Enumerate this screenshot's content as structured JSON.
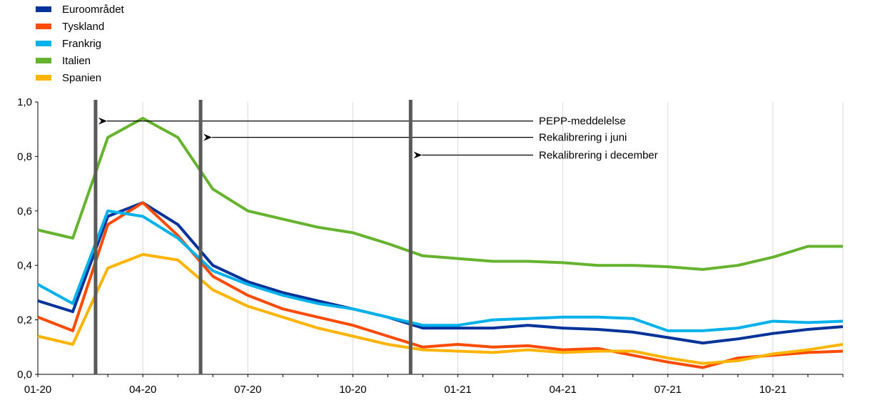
{
  "chart_data": {
    "type": "line",
    "categories": [
      "01-20",
      "02-20",
      "03-20",
      "04-20",
      "05-20",
      "06-20",
      "07-20",
      "08-20",
      "09-20",
      "10-20",
      "11-20",
      "12-20",
      "01-21",
      "02-21",
      "03-21",
      "04-21",
      "05-21",
      "06-21",
      "07-21",
      "08-21",
      "09-21",
      "10-21",
      "11-21",
      "12-21"
    ],
    "x_tick_labels": [
      "01-20",
      "04-20",
      "07-20",
      "10-20",
      "01-21",
      "04-21",
      "07-21",
      "10-21"
    ],
    "y_tick_labels": [
      "0,0",
      "0,2",
      "0,4",
      "0,6",
      "0,8",
      "1,0"
    ],
    "ylim": [
      0,
      1.0
    ],
    "grid": "vertical",
    "legend_position": "top-left",
    "series": [
      {
        "name": "Euroområdet",
        "color": "#003299",
        "values": [
          0.27,
          0.23,
          0.58,
          0.63,
          0.55,
          0.4,
          0.34,
          0.3,
          0.27,
          0.24,
          0.21,
          0.17,
          0.17,
          0.17,
          0.18,
          0.17,
          0.165,
          0.155,
          0.135,
          0.115,
          0.13,
          0.15,
          0.165,
          0.175
        ]
      },
      {
        "name": "Tyskland",
        "color": "#FF4B00",
        "values": [
          0.21,
          0.16,
          0.55,
          0.63,
          0.51,
          0.36,
          0.29,
          0.24,
          0.21,
          0.18,
          0.14,
          0.1,
          0.11,
          0.1,
          0.105,
          0.09,
          0.095,
          0.07,
          0.045,
          0.025,
          0.06,
          0.07,
          0.08,
          0.085
        ]
      },
      {
        "name": "Frankrig",
        "color": "#00B1EA",
        "values": [
          0.33,
          0.26,
          0.6,
          0.58,
          0.5,
          0.38,
          0.33,
          0.29,
          0.26,
          0.24,
          0.21,
          0.18,
          0.18,
          0.2,
          0.205,
          0.21,
          0.21,
          0.205,
          0.16,
          0.16,
          0.17,
          0.195,
          0.19,
          0.195
        ]
      },
      {
        "name": "Italien",
        "color": "#65B32E",
        "values": [
          0.53,
          0.5,
          0.87,
          0.94,
          0.87,
          0.68,
          0.6,
          0.57,
          0.54,
          0.52,
          0.48,
          0.435,
          0.425,
          0.415,
          0.415,
          0.41,
          0.4,
          0.4,
          0.395,
          0.385,
          0.4,
          0.43,
          0.47,
          0.47
        ]
      },
      {
        "name": "Spanien",
        "color": "#FFB400",
        "values": [
          0.14,
          0.11,
          0.39,
          0.44,
          0.42,
          0.31,
          0.25,
          0.21,
          0.17,
          0.14,
          0.11,
          0.09,
          0.085,
          0.08,
          0.09,
          0.08,
          0.085,
          0.085,
          0.06,
          0.04,
          0.05,
          0.075,
          0.09,
          0.11
        ]
      }
    ],
    "event_lines": [
      {
        "x": 1.65,
        "label": "PEPP-meddelelse",
        "arrow_y": 0.93
      },
      {
        "x": 4.65,
        "label": "Rekalibrering i juni",
        "arrow_y": 0.87
      },
      {
        "x": 10.65,
        "label": "Rekalibrering i december",
        "arrow_y": 0.805
      }
    ],
    "event_line_color": "#595959"
  }
}
